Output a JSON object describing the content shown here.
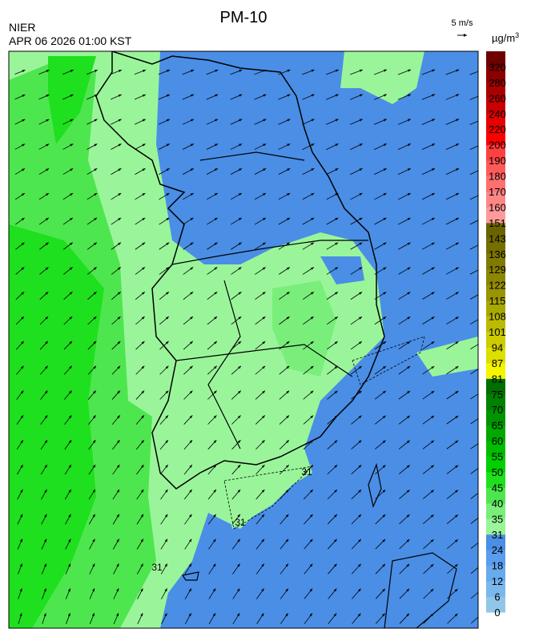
{
  "header": {
    "title": "PM-10",
    "agency": "NIER",
    "timestamp": "APR 06 2026 01:00 KST",
    "vector_scale": "5 m/s",
    "unit": "µg/m",
    "unit_superscript": "3"
  },
  "contour_labels": [
    "31",
    "31",
    "31"
  ],
  "colorbar": [
    {
      "label": "0",
      "color": "#92c6e8"
    },
    {
      "label": "6",
      "color": "#7ab8ec"
    },
    {
      "label": "12",
      "color": "#68aaee"
    },
    {
      "label": "18",
      "color": "#5a9cee"
    },
    {
      "label": "24",
      "color": "#4a8ee6"
    },
    {
      "label": "31",
      "color": "#9af59a"
    },
    {
      "label": "35",
      "color": "#7aee7a"
    },
    {
      "label": "40",
      "color": "#4ee64e"
    },
    {
      "label": "45",
      "color": "#1ee01e"
    },
    {
      "label": "50",
      "color": "#00d000"
    },
    {
      "label": "55",
      "color": "#00bc00"
    },
    {
      "label": "60",
      "color": "#00a800"
    },
    {
      "label": "65",
      "color": "#009400"
    },
    {
      "label": "70",
      "color": "#008200"
    },
    {
      "label": "75",
      "color": "#006e00"
    },
    {
      "label": "81",
      "color": "#f5f500"
    },
    {
      "label": "87",
      "color": "#dede00"
    },
    {
      "label": "94",
      "color": "#cccc00"
    },
    {
      "label": "101",
      "color": "#baba00"
    },
    {
      "label": "108",
      "color": "#a8a800"
    },
    {
      "label": "115",
      "color": "#9a9400"
    },
    {
      "label": "122",
      "color": "#8c8600"
    },
    {
      "label": "129",
      "color": "#807a00"
    },
    {
      "label": "136",
      "color": "#766e00"
    },
    {
      "label": "143",
      "color": "#6a6400"
    },
    {
      "label": "151",
      "color": "#ff9a9a"
    },
    {
      "label": "160",
      "color": "#ff8686"
    },
    {
      "label": "170",
      "color": "#ff7070"
    },
    {
      "label": "180",
      "color": "#ff5a5a"
    },
    {
      "label": "190",
      "color": "#ff4040"
    },
    {
      "label": "200",
      "color": "#ff0000"
    },
    {
      "label": "220",
      "color": "#e60000"
    },
    {
      "label": "240",
      "color": "#c80000"
    },
    {
      "label": "260",
      "color": "#aa0000"
    },
    {
      "label": "280",
      "color": "#8c0000"
    },
    {
      "label": "320",
      "color": "#6e0000"
    }
  ]
}
